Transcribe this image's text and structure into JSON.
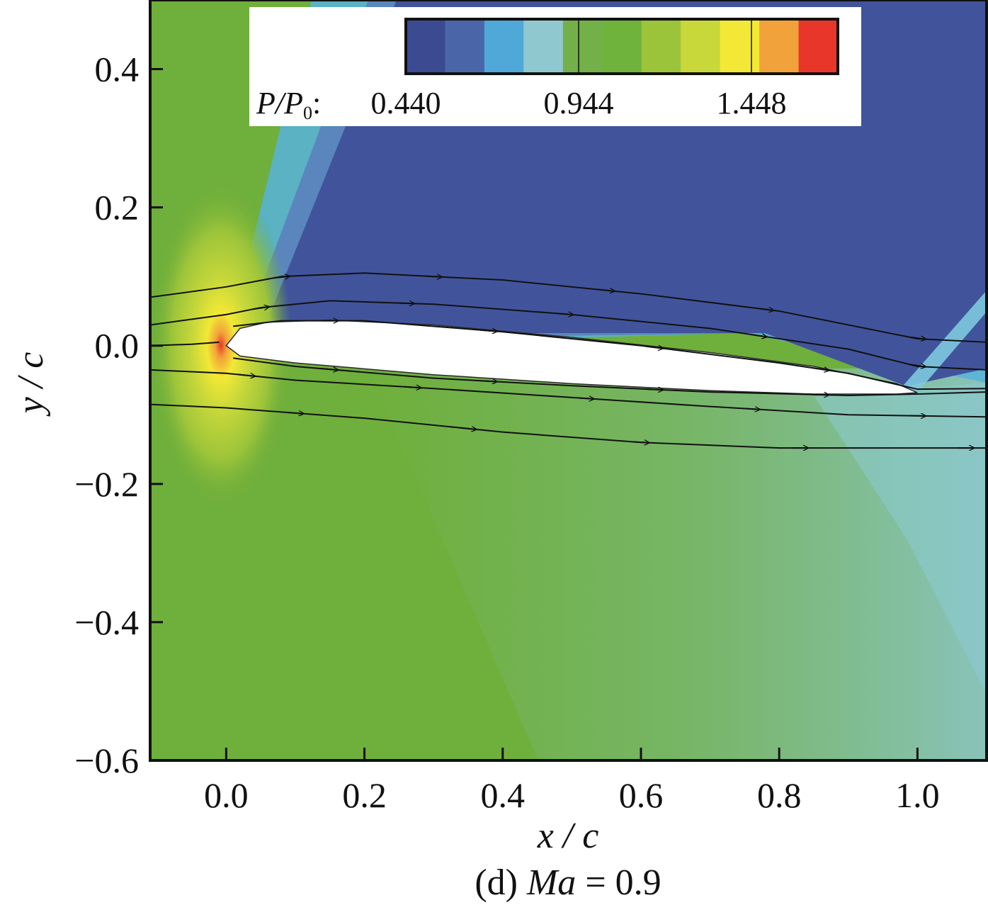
{
  "chart_data": {
    "type": "heatmap",
    "plot_kind": "pressure contour with streamlines around airfoil",
    "caption": {
      "prefix": "(d) ",
      "var": "Ma",
      "suffix": " = 0.9"
    },
    "xlabel": "x / c",
    "ylabel": "y / c",
    "xlim": [
      -0.11,
      1.1
    ],
    "ylim": [
      -0.6,
      0.5
    ],
    "x_ticks": [
      {
        "value": 0.0,
        "label": "0.0"
      },
      {
        "value": 0.2,
        "label": "0.2"
      },
      {
        "value": 0.4,
        "label": "0.4"
      },
      {
        "value": 0.6,
        "label": "0.6"
      },
      {
        "value": 0.8,
        "label": "0.8"
      },
      {
        "value": 1.0,
        "label": "1.0"
      }
    ],
    "y_ticks": [
      {
        "value": 0.4,
        "label": "0.4"
      },
      {
        "value": 0.2,
        "label": "0.2"
      },
      {
        "value": 0.0,
        "label": "0.0"
      },
      {
        "value": -0.2,
        "label": "−0.2"
      },
      {
        "value": -0.4,
        "label": "−0.4"
      },
      {
        "value": -0.6,
        "label": "−0.6"
      }
    ],
    "colorbar": {
      "var_label": "P/P",
      "var_subscript": "0",
      "min": 0.44,
      "max": 1.7,
      "tick_labels": [
        {
          "value": 0.44,
          "label": "0.440"
        },
        {
          "value": 0.944,
          "label": "0.944"
        },
        {
          "value": 1.448,
          "label": "1.448"
        }
      ],
      "colors": [
        "#3b4a91",
        "#4b66a8",
        "#4fa8d8",
        "#8fc9cf",
        "#73b04a",
        "#6fb23c",
        "#9cc43a",
        "#c8d83a",
        "#f3e835",
        "#f2a23a",
        "#e8372a"
      ]
    },
    "colors": {
      "suction_low": "#41549b",
      "far_field": "#6faf3b",
      "pressure_side": "#7ab876",
      "expansion_light": "#57b3dc",
      "stagnation": "#e8372a"
    },
    "airfoil": {
      "upper": [
        [
          0.0,
          0.0
        ],
        [
          0.02,
          0.025
        ],
        [
          0.06,
          0.034
        ],
        [
          0.15,
          0.037
        ],
        [
          0.3,
          0.03
        ],
        [
          0.5,
          0.012
        ],
        [
          0.7,
          -0.01
        ],
        [
          0.85,
          -0.03
        ],
        [
          0.97,
          -0.055
        ],
        [
          1.0,
          -0.068
        ]
      ],
      "lower": [
        [
          0.0,
          0.0
        ],
        [
          0.02,
          -0.015
        ],
        [
          0.1,
          -0.025
        ],
        [
          0.3,
          -0.042
        ],
        [
          0.5,
          -0.055
        ],
        [
          0.7,
          -0.065
        ],
        [
          0.85,
          -0.07
        ],
        [
          0.97,
          -0.07
        ],
        [
          1.0,
          -0.068
        ]
      ]
    },
    "streamlines": [
      {
        "points": [
          [
            -0.11,
            0.07
          ],
          [
            0.0,
            0.085
          ],
          [
            0.08,
            0.1
          ],
          [
            0.2,
            0.105
          ],
          [
            0.4,
            0.095
          ],
          [
            0.6,
            0.075
          ],
          [
            0.8,
            0.05
          ],
          [
            1.0,
            0.01
          ],
          [
            1.1,
            0.005
          ]
        ],
        "arrows": [
          0.08,
          0.3,
          0.55,
          0.78,
          1.0
        ]
      },
      {
        "points": [
          [
            -0.11,
            0.03
          ],
          [
            0.0,
            0.045
          ],
          [
            0.05,
            0.055
          ],
          [
            0.15,
            0.065
          ],
          [
            0.3,
            0.06
          ],
          [
            0.5,
            0.045
          ],
          [
            0.7,
            0.025
          ],
          [
            0.9,
            -0.005
          ],
          [
            1.0,
            -0.03
          ],
          [
            1.1,
            -0.035
          ]
        ],
        "arrows": [
          0.05,
          0.26,
          0.49,
          0.77,
          1.0
        ]
      },
      {
        "points": [
          [
            -0.11,
            0.0
          ],
          [
            -0.05,
            0.002
          ],
          [
            -0.01,
            0.005
          ]
        ]
      },
      {
        "points": [
          [
            0.01,
            0.028
          ],
          [
            0.08,
            0.036
          ],
          [
            0.2,
            0.036
          ],
          [
            0.4,
            0.02
          ],
          [
            0.6,
            0.0
          ],
          [
            0.8,
            -0.025
          ],
          [
            0.9,
            -0.04
          ],
          [
            1.0,
            -0.063
          ],
          [
            1.1,
            -0.062
          ]
        ],
        "arrows": [
          0.15,
          0.38,
          0.62,
          0.86
        ]
      },
      {
        "points": [
          [
            0.01,
            -0.018
          ],
          [
            0.1,
            -0.03
          ],
          [
            0.3,
            -0.047
          ],
          [
            0.5,
            -0.058
          ],
          [
            0.7,
            -0.067
          ],
          [
            0.9,
            -0.072
          ],
          [
            1.0,
            -0.07
          ],
          [
            1.1,
            -0.067
          ]
        ],
        "arrows": [
          0.15,
          0.38,
          0.62,
          0.86
        ]
      },
      {
        "points": [
          [
            -0.11,
            -0.035
          ],
          [
            0.0,
            -0.04
          ],
          [
            0.1,
            -0.05
          ],
          [
            0.3,
            -0.062
          ],
          [
            0.5,
            -0.075
          ],
          [
            0.7,
            -0.088
          ],
          [
            0.9,
            -0.1
          ],
          [
            1.1,
            -0.103
          ]
        ],
        "arrows": [
          0.03,
          0.27,
          0.52,
          0.76,
          1.0
        ]
      },
      {
        "points": [
          [
            -0.11,
            -0.085
          ],
          [
            0.0,
            -0.09
          ],
          [
            0.2,
            -0.105
          ],
          [
            0.4,
            -0.125
          ],
          [
            0.6,
            -0.14
          ],
          [
            0.8,
            -0.148
          ],
          [
            1.0,
            -0.148
          ],
          [
            1.1,
            -0.148
          ]
        ],
        "arrows": [
          0.1,
          0.35,
          0.6,
          0.83,
          1.07
        ]
      }
    ]
  }
}
